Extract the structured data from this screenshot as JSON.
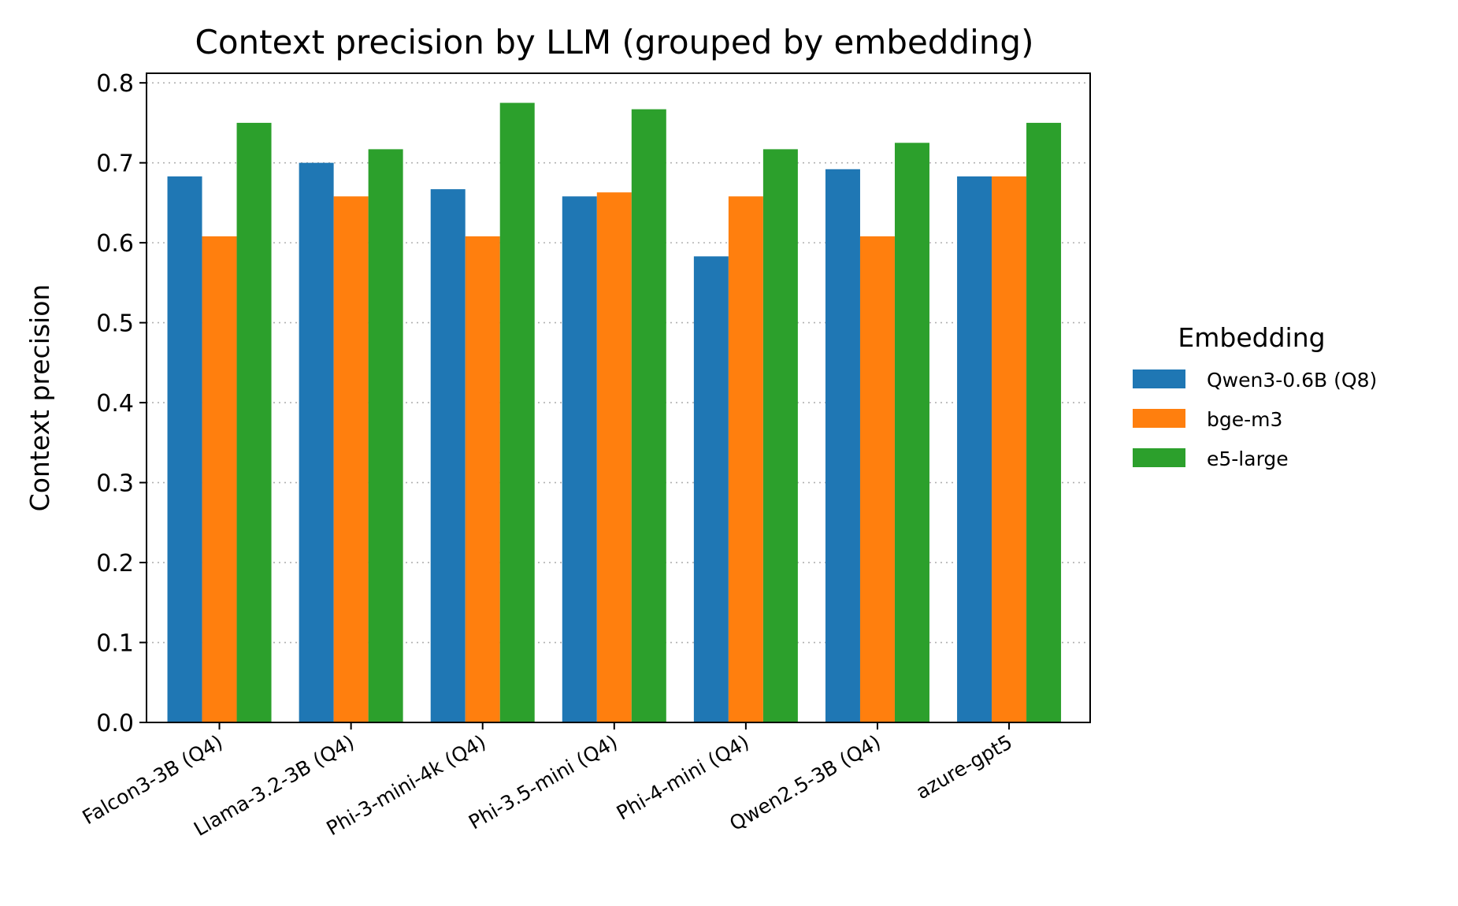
{
  "chart_data": {
    "type": "bar",
    "title": "Context precision by LLM (grouped by embedding)",
    "xlabel": "",
    "ylabel": "Context precision",
    "ylim": [
      0,
      0.812
    ],
    "yticks": [
      "0.0",
      "0.1",
      "0.2",
      "0.3",
      "0.4",
      "0.5",
      "0.6",
      "0.7",
      "0.8"
    ],
    "grid": "y, dotted",
    "legend_title": "Embedding",
    "legend_placement": "outside-right",
    "categories": [
      "Falcon3-3B (Q4)",
      "Llama-3.2-3B (Q4)",
      "Phi-3-mini-4k (Q4)",
      "Phi-3.5-mini (Q4)",
      "Phi-4-mini (Q4)",
      "Qwen2.5-3B (Q4)",
      "azure-gpt5"
    ],
    "series": [
      {
        "name": "Qwen3-0.6B (Q8)",
        "color": "#1f77b4",
        "values": [
          0.683,
          0.7,
          0.667,
          0.658,
          0.583,
          0.692,
          0.683
        ]
      },
      {
        "name": "bge-m3",
        "color": "#ff7f0e",
        "values": [
          0.608,
          0.658,
          0.608,
          0.663,
          0.658,
          0.608,
          0.683
        ]
      },
      {
        "name": "e5-large",
        "color": "#2ca02c",
        "values": [
          0.75,
          0.717,
          0.775,
          0.767,
          0.717,
          0.725,
          0.75
        ]
      }
    ]
  }
}
